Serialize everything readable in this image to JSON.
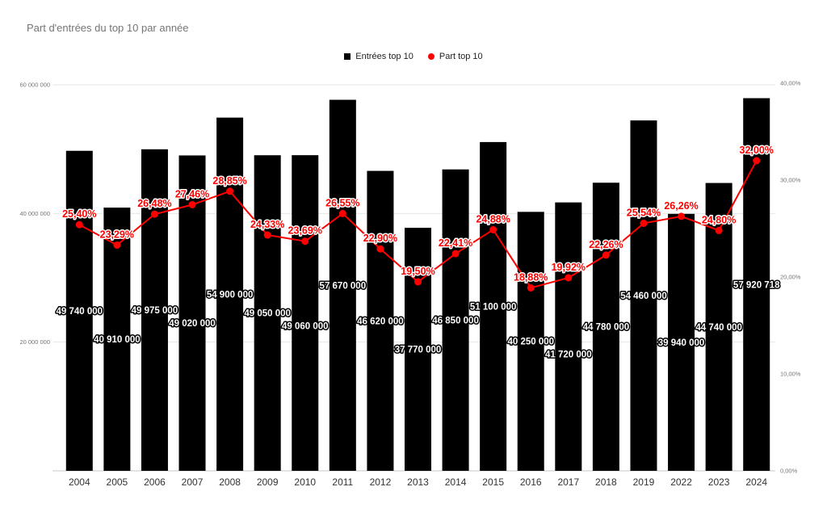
{
  "title": "Part d'entrées du top 10 par année",
  "legend": {
    "items": [
      {
        "label": "Entrées top 10",
        "marker": "square-marker-icon",
        "color": "#000000"
      },
      {
        "label": "Part top 10",
        "marker": "circle-marker-icon",
        "color": "#ff0000"
      }
    ],
    "position": "top-center"
  },
  "chart_data": {
    "type": "combo-bar-line",
    "title": "Part d'entrées du top 10 par année",
    "categories": [
      "2004",
      "2005",
      "2006",
      "2007",
      "2008",
      "2009",
      "2010",
      "2011",
      "2012",
      "2013",
      "2014",
      "2015",
      "2016",
      "2017",
      "2018",
      "2019",
      "2022",
      "2023",
      "2024"
    ],
    "series": [
      {
        "name": "Entrées top 10",
        "type": "bar",
        "axis": "left",
        "color": "#000000",
        "values": [
          49740000,
          40910000,
          49975000,
          49020000,
          54900000,
          49050000,
          49060000,
          57670000,
          46620000,
          37770000,
          46850000,
          51100000,
          40250000,
          41720000,
          44780000,
          54460000,
          39940000,
          44740000,
          57920718
        ],
        "labels": [
          "49 740 000",
          "40 910 000",
          "49 975 000",
          "49 020 000",
          "54 900 000",
          "49 050 000",
          "49 060 000",
          "57 670 000",
          "46 620 000",
          "37 770 000",
          "46 850 000",
          "51 100 000",
          "40 250 000",
          "41 720 000",
          "44 780 000",
          "54 460 000",
          "39 940 000",
          "44 740 000",
          "57 920 718"
        ]
      },
      {
        "name": "Part top 10",
        "type": "line",
        "axis": "right",
        "color": "#ff0000",
        "values": [
          25.4,
          23.29,
          26.48,
          27.46,
          28.85,
          24.33,
          23.69,
          26.55,
          22.9,
          19.5,
          22.41,
          24.88,
          18.88,
          19.92,
          22.26,
          25.54,
          26.26,
          24.8,
          32.0
        ],
        "labels": [
          "25,40%",
          "23,29%",
          "26,48%",
          "27,46%",
          "28,85%",
          "24,33%",
          "23,69%",
          "26,55%",
          "22,90%",
          "19,50%",
          "22,41%",
          "24,88%",
          "18,88%",
          "19,92%",
          "22,26%",
          "25,54%",
          "26,26%",
          "24,80%",
          "32,00%"
        ]
      }
    ],
    "left_axis": {
      "range": [
        0,
        60000000
      ],
      "ticks": [
        {
          "value": 20000000,
          "label": "20 000 000"
        },
        {
          "value": 40000000,
          "label": "40 000 000"
        },
        {
          "value": 60000000,
          "label": "60 000 000"
        }
      ]
    },
    "right_axis": {
      "range": [
        0,
        40
      ],
      "ticks": [
        {
          "value": 0,
          "label": "0,00%"
        },
        {
          "value": 10,
          "label": "10,00%"
        },
        {
          "value": 20,
          "label": "20,00%"
        },
        {
          "value": 30,
          "label": "30,00%"
        },
        {
          "value": 40,
          "label": "40,00%"
        }
      ]
    },
    "grid": {
      "horizontal": true,
      "color": "#e6e6e6"
    },
    "colors": {
      "bar": "#000000",
      "line": "#ff0000",
      "bar_label_fill": "#ffffff",
      "bar_label_stroke": "#000000",
      "pct_label_fill": "#ff0000",
      "pct_label_stroke": "#ffffff",
      "axis_text": "#757575",
      "category_text": "#333333",
      "baseline": "#c7c7c7",
      "title_text": "#757575"
    }
  }
}
